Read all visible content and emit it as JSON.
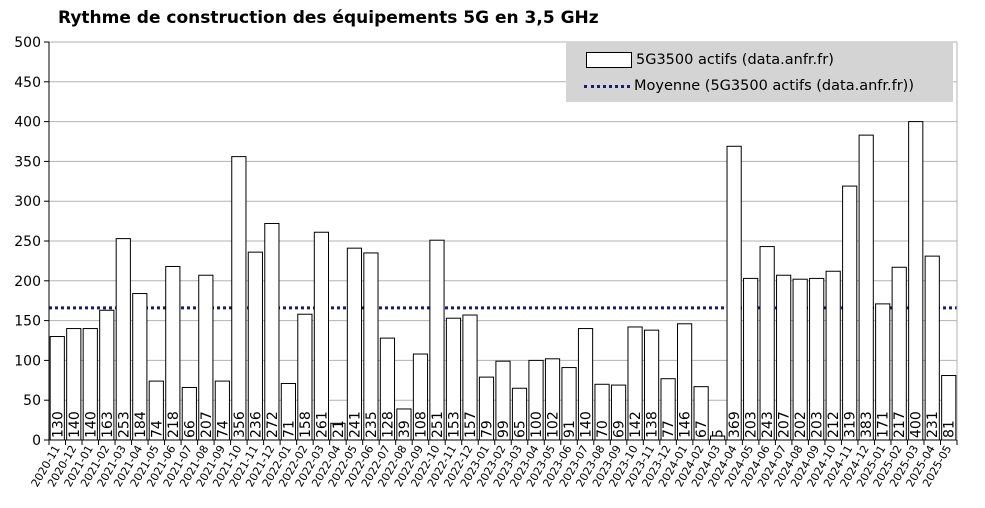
{
  "title": "Rythme de construction des équipements 5G en 3,5 GHz",
  "legend": {
    "bar_label": "5G3500 actifs (data.anfr.fr)",
    "line_label": "Moyenne (5G3500 actifs (data.anfr.fr))"
  },
  "chart_data": {
    "type": "bar",
    "title": "Rythme de construction des équipements 5G en 3,5 GHz",
    "xlabel": "",
    "ylabel": "",
    "ylim": [
      0,
      500
    ],
    "yticks": [
      0,
      50,
      100,
      150,
      200,
      250,
      300,
      350,
      400,
      450,
      500
    ],
    "grid": true,
    "legend_position": "top-right",
    "categories": [
      "2020-11",
      "2020-12",
      "2021-01",
      "2021-02",
      "2021-03",
      "2021-04",
      "2021-05",
      "2021-06",
      "2021-07",
      "2021-08",
      "2021-09",
      "2021-10",
      "2021-11",
      "2021-12",
      "2022-01",
      "2022-02",
      "2022-03",
      "2022-04",
      "2022-05",
      "2022-06",
      "2022-07",
      "2022-08",
      "2022-09",
      "2022-10",
      "2022-11",
      "2022-12",
      "2023-01",
      "2023-02",
      "2023-03",
      "2023-04",
      "2023-05",
      "2023-06",
      "2023-07",
      "2023-08",
      "2023-09",
      "2023-10",
      "2023-11",
      "2023-12",
      "2024-01",
      "2024-02",
      "2024-03",
      "2024-04",
      "2024-05",
      "2024-06",
      "2024-07",
      "2024-08",
      "2024-09",
      "2024-10",
      "2024-11",
      "2024-12",
      "2025-01",
      "2025-02",
      "2025-03",
      "2025-04",
      "2025-05"
    ],
    "series": [
      {
        "name": "5G3500 actifs (data.anfr.fr)",
        "values": [
          130,
          140,
          140,
          163,
          253,
          184,
          74,
          218,
          66,
          207,
          74,
          356,
          236,
          272,
          71,
          158,
          261,
          21,
          241,
          235,
          128,
          39,
          108,
          251,
          153,
          157,
          79,
          99,
          65,
          100,
          102,
          91,
          140,
          70,
          69,
          142,
          138,
          77,
          146,
          67,
          5,
          369,
          203,
          243,
          207,
          202,
          203,
          212,
          319,
          383,
          171,
          217,
          400,
          231,
          81
        ],
        "color": "#ffffff",
        "stroke": "#000000"
      }
    ],
    "average": {
      "name": "Moyenne (5G3500 actifs (data.anfr.fr))",
      "value": 166,
      "color": "#1a1a6e"
    }
  }
}
